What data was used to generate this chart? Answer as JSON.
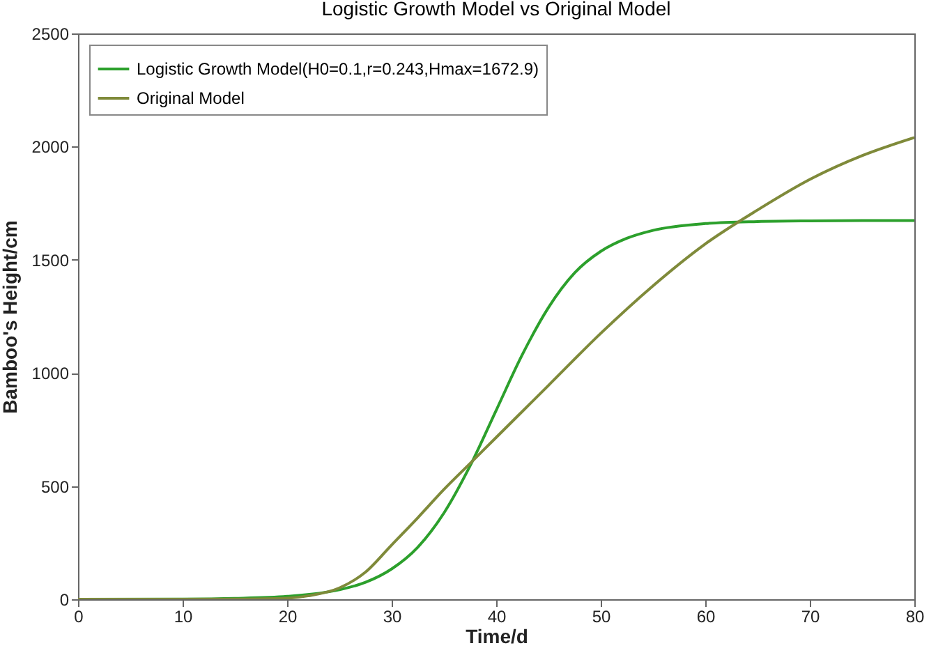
{
  "chart_data": {
    "type": "line",
    "title": "Logistic Growth Model vs Original Model",
    "xlabel": "Time/d",
    "ylabel": "Bamboo's Height/cm",
    "xlim": [
      0,
      80
    ],
    "xticks": [
      0,
      10,
      20,
      30,
      40,
      50,
      60,
      70,
      80
    ],
    "ylim": [
      0,
      2500
    ],
    "yticks": [
      0,
      500,
      1000,
      1500,
      2000,
      2500
    ],
    "grid": false,
    "legend": "top left",
    "line_style": "solid",
    "marker": "none",
    "series": [
      {
        "name": "Logistic Growth Model(H0=0.1,r=0.243,Hmax=1672.9)",
        "color": "#2ca02c",
        "x": [
          0,
          10,
          15,
          20,
          25,
          27.5,
          30,
          32.5,
          35,
          37.5,
          40,
          42.5,
          45,
          47.5,
          50,
          52.5,
          55,
          60,
          65,
          70,
          75,
          80
        ],
        "values": [
          0,
          1,
          4,
          13,
          42,
          75,
          134,
          230,
          381,
          589,
          835,
          1081,
          1289,
          1442,
          1537,
          1595,
          1630,
          1660,
          1669,
          1672,
          1673,
          1673
        ]
      },
      {
        "name": "Original Model",
        "color": "#7f8a3a",
        "x": [
          0,
          10,
          15,
          20,
          22,
          25,
          27.5,
          30,
          32.5,
          35,
          37.5,
          40,
          45,
          50,
          55,
          60,
          65,
          70,
          75,
          80
        ],
        "values": [
          0,
          0,
          1,
          5,
          15,
          50,
          120,
          240,
          360,
          485,
          600,
          715,
          945,
          1175,
          1385,
          1570,
          1720,
          1855,
          1960,
          2040
        ]
      }
    ]
  }
}
